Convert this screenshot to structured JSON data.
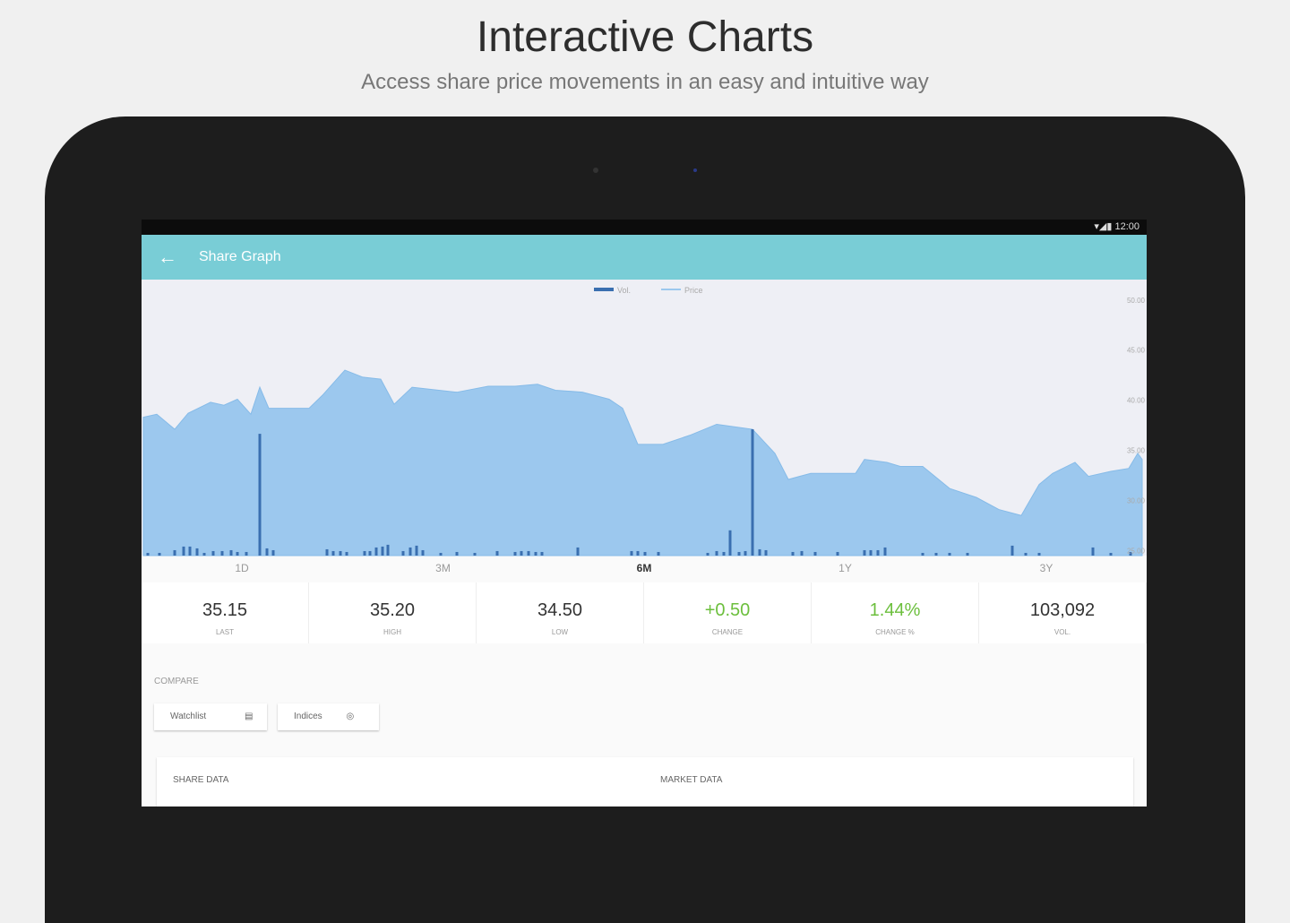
{
  "header": {
    "title": "Interactive Charts",
    "subtitle": "Access share price movements in an easy and intuitive way"
  },
  "status_bar": {
    "time": "12:00"
  },
  "app_bar": {
    "title": "Share Graph"
  },
  "chart_data": {
    "type": "area-volume",
    "series": [
      {
        "name": "Vol.",
        "color": "#3a6fb0",
        "axis": "y2",
        "x": [
          0.5,
          1.8,
          3.5,
          4.5,
          5.2,
          6,
          6.8,
          7.8,
          8.8,
          9.8,
          10.5,
          11.5,
          13,
          13.8,
          14.5,
          20.5,
          21.2,
          22,
          22.7,
          24.7,
          25.3,
          26,
          26.7,
          27.3,
          29,
          29.8,
          30.5,
          31.2,
          33.2,
          35,
          37,
          39.5,
          41.5,
          42.2,
          43,
          43.8,
          44.5,
          48.5,
          54.5,
          55.2,
          56,
          57.5,
          63,
          64,
          64.8,
          65.5,
          66.5,
          67.2,
          68,
          68.8,
          69.5,
          72.5,
          73.5,
          75,
          77.5,
          80.5,
          81.2,
          82,
          82.8,
          87,
          88.5,
          90,
          92,
          97,
          98.5,
          100,
          106,
          108,
          110.2
        ],
        "values": [
          3,
          3,
          6,
          10,
          10,
          8,
          3,
          5,
          5,
          6,
          4,
          4,
          135,
          8,
          6,
          7,
          5,
          5,
          4,
          5,
          5,
          9,
          10,
          12,
          5,
          9,
          11,
          6,
          3,
          4,
          3,
          5,
          4,
          5,
          5,
          4,
          4,
          9,
          5,
          5,
          4,
          4,
          3,
          5,
          4,
          28,
          4,
          5,
          140,
          7,
          6,
          4,
          5,
          4,
          4,
          6,
          6,
          6,
          9,
          3,
          3,
          3,
          3,
          11,
          3,
          3,
          9,
          3,
          4
        ]
      },
      {
        "name": "Price",
        "color": "#9cc8ee",
        "x": [
          0,
          1.5,
          3.5,
          5,
          7.5,
          9,
          10.5,
          12,
          13,
          14,
          18.5,
          20,
          22.5,
          24.5,
          26.5,
          28,
          30,
          33,
          35,
          38.5,
          41.5,
          44,
          46,
          49,
          52,
          53.5,
          55.2,
          58,
          61,
          64,
          68,
          70.5,
          72,
          74.5,
          79.5,
          80.5,
          83,
          84.5,
          87,
          90,
          93,
          95.5,
          98,
          100,
          101.5,
          104,
          105.5,
          108,
          110,
          111,
          111.5
        ],
        "values": [
          38.3,
          38.6,
          37.1,
          38.7,
          39.8,
          39.5,
          40.1,
          38.6,
          41.3,
          39.2,
          39.2,
          40.5,
          43.0,
          42.3,
          42.1,
          39.6,
          41.3,
          41.0,
          40.8,
          41.4,
          41.4,
          41.6,
          41.0,
          40.8,
          40.1,
          39.2,
          35.6,
          35.6,
          36.5,
          37.6,
          37.1,
          34.7,
          32.1,
          32.7,
          32.7,
          34.1,
          33.8,
          33.4,
          33.4,
          31.2,
          30.3,
          29.1,
          28.5,
          31.6,
          32.7,
          33.8,
          32.4,
          32.9,
          33.2,
          34.7,
          34.1
        ]
      }
    ],
    "xlim": [
      0,
      111.5
    ],
    "ylim": [
      24.5,
      51.5
    ],
    "yticks": [
      {
        "value": 50,
        "label": "50.00"
      },
      {
        "value": 45,
        "label": "45.00"
      },
      {
        "value": 40,
        "label": "40.00"
      },
      {
        "value": 35,
        "label": "35.00"
      },
      {
        "value": 30,
        "label": "30.00"
      },
      {
        "value": 25,
        "label": "25.00"
      }
    ],
    "y2lim": [
      0,
      300
    ],
    "legend": "top"
  },
  "range_tabs": {
    "labels": [
      "1D",
      "3M",
      "6M",
      "1Y",
      "3Y"
    ],
    "selected_index": 2
  },
  "stats": [
    {
      "value": "35.15",
      "label": "LAST"
    },
    {
      "value": "35.20",
      "label": "HIGH"
    },
    {
      "value": "34.50",
      "label": "LOW"
    },
    {
      "value": "+0.50",
      "label": "CHANGE"
    },
    {
      "value": "1.44%",
      "label": "CHANGE %"
    },
    {
      "value": "103,092",
      "label": "VOL."
    }
  ],
  "compare": {
    "title": "COMPARE",
    "buttons": [
      "Watchlist",
      "Indices"
    ]
  },
  "sections": [
    "SHARE DATA",
    "MARKET DATA"
  ]
}
